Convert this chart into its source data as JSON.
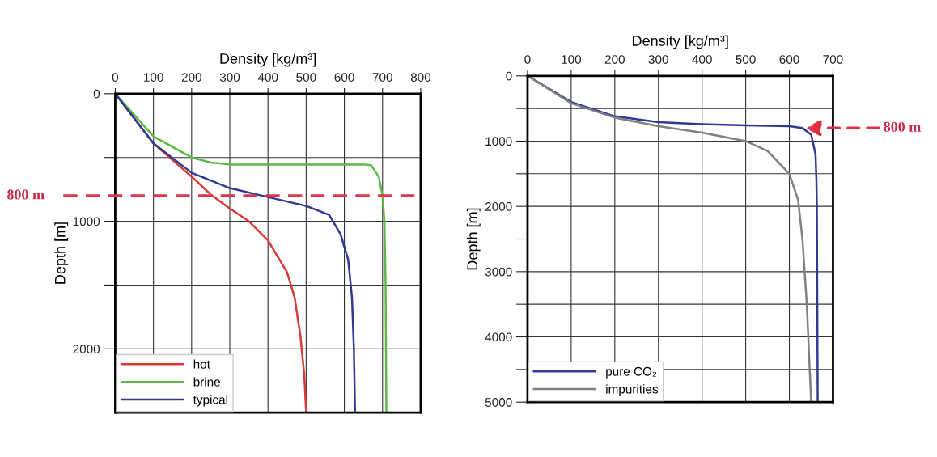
{
  "chart_data": [
    {
      "type": "line",
      "xlabel": "Density [kg/m³]",
      "ylabel": "Depth [m]",
      "xlim": [
        0,
        800
      ],
      "xticks": [
        0,
        100,
        200,
        300,
        400,
        500,
        600,
        700,
        800
      ],
      "ylim": [
        2500,
        0
      ],
      "yticks": [
        0,
        {
          "value": 500,
          "label": null
        },
        1000,
        {
          "value": 1500,
          "label": null
        },
        2000
      ],
      "grid": true,
      "legend": "bottom left",
      "series": [
        {
          "name": "hot",
          "color": "#d93a35",
          "x": [
            0,
            100,
            200,
            250,
            300,
            350,
            400,
            430,
            450,
            470,
            485,
            495,
            500
          ],
          "values": [
            0,
            390,
            650,
            790,
            900,
            1000,
            1150,
            1300,
            1400,
            1600,
            1900,
            2200,
            2500
          ]
        },
        {
          "name": "brine",
          "color": "#5cb848",
          "x": [
            0,
            100,
            200,
            250,
            300,
            500,
            650,
            670,
            690,
            700,
            705,
            708,
            710
          ],
          "values": [
            0,
            335,
            500,
            540,
            555,
            555,
            555,
            560,
            650,
            800,
            1000,
            1500,
            2500
          ]
        },
        {
          "name": "typical",
          "color": "#2e3a94",
          "x": [
            0,
            100,
            200,
            300,
            400,
            500,
            560,
            590,
            610,
            620,
            625,
            628
          ],
          "values": [
            0,
            390,
            620,
            740,
            810,
            880,
            950,
            1100,
            1300,
            1600,
            2000,
            2500
          ]
        }
      ],
      "ref_lines": [
        {
          "axis": "y",
          "value": 800,
          "label": "800 m",
          "color": "#d9364b",
          "line_style": "dashed"
        }
      ]
    },
    {
      "type": "line",
      "xlabel": "Density [kg/m³]",
      "ylabel": "Depth [m]",
      "xlim": [
        0,
        700
      ],
      "xticks": [
        0,
        100,
        200,
        300,
        400,
        500,
        600,
        700
      ],
      "ylim": [
        5000,
        0
      ],
      "yticks": [
        0,
        {
          "value": 500,
          "label": null
        },
        1000,
        {
          "value": 1500,
          "label": null
        },
        2000,
        {
          "value": 2500,
          "label": null
        },
        3000,
        {
          "value": 3500,
          "label": null
        },
        4000,
        {
          "value": 4500,
          "label": null
        },
        5000
      ],
      "grid": true,
      "legend": "bottom left",
      "series": [
        {
          "name": "pure CO₂",
          "color": "#2e3a94",
          "x": [
            0,
            100,
            200,
            300,
            400,
            500,
            600,
            630,
            650,
            660,
            662,
            663,
            665
          ],
          "values": [
            0,
            400,
            620,
            710,
            740,
            760,
            770,
            800,
            900,
            1200,
            1600,
            2000,
            5000
          ]
        },
        {
          "name": "impurities",
          "color": "#808080",
          "x": [
            0,
            100,
            200,
            300,
            400,
            500,
            550,
            600,
            620,
            630,
            640,
            650
          ],
          "values": [
            0,
            420,
            640,
            770,
            870,
            1000,
            1150,
            1500,
            1900,
            2500,
            3500,
            5000
          ]
        }
      ],
      "annotations": [
        {
          "text": "800 m",
          "x": 635,
          "y": 800
        }
      ]
    }
  ]
}
